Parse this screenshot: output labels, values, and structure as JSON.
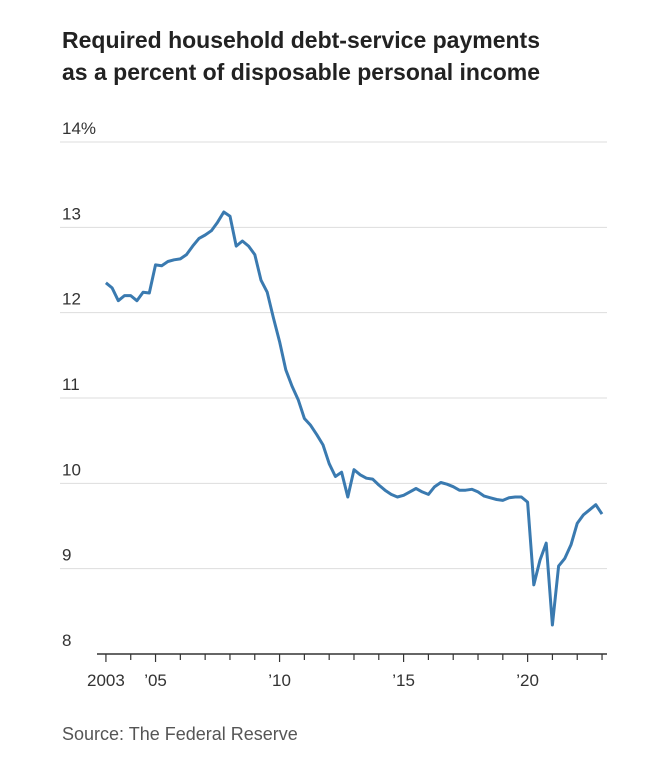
{
  "chart_data": {
    "type": "line",
    "title": [
      "Required household debt-service payments",
      "as a percent of disposable personal income"
    ],
    "source": "Source: The Federal Reserve",
    "x": [
      2003,
      2003.25,
      2003.5,
      2003.75,
      2004,
      2004.25,
      2004.5,
      2004.75,
      2005,
      2005.25,
      2005.5,
      2005.75,
      2006,
      2006.25,
      2006.5,
      2006.75,
      2007,
      2007.25,
      2007.5,
      2007.75,
      2008,
      2008.25,
      2008.5,
      2008.75,
      2009,
      2009.25,
      2009.5,
      2009.75,
      2010,
      2010.25,
      2010.5,
      2010.75,
      2011,
      2011.25,
      2011.5,
      2011.75,
      2012,
      2012.25,
      2012.5,
      2012.75,
      2013,
      2013.25,
      2013.5,
      2013.75,
      2014,
      2014.25,
      2014.5,
      2014.75,
      2015,
      2015.25,
      2015.5,
      2015.75,
      2016,
      2016.25,
      2016.5,
      2016.75,
      2017,
      2017.25,
      2017.5,
      2017.75,
      2018,
      2018.25,
      2018.5,
      2018.75,
      2019,
      2019.25,
      2019.5,
      2019.75,
      2020,
      2020.25,
      2020.5,
      2020.75,
      2021,
      2021.25,
      2021.5,
      2021.75,
      2022,
      2022.25,
      2022.5,
      2022.75,
      2023
    ],
    "series": [
      {
        "color": "#3a7ab0",
        "values": [
          12.35,
          12.29,
          12.14,
          12.2,
          12.2,
          12.14,
          12.24,
          12.23,
          12.56,
          12.55,
          12.6,
          12.62,
          12.63,
          12.68,
          12.78,
          12.87,
          12.91,
          12.96,
          13.06,
          13.18,
          13.13,
          12.78,
          12.84,
          12.78,
          12.68,
          12.38,
          12.24,
          11.94,
          11.66,
          11.33,
          11.14,
          10.98,
          10.76,
          10.68,
          10.57,
          10.45,
          10.23,
          10.08,
          10.13,
          9.84,
          10.16,
          10.1,
          10.06,
          10.05,
          9.98,
          9.92,
          9.87,
          9.84,
          9.86,
          9.9,
          9.94,
          9.9,
          9.87,
          9.96,
          10.01,
          9.99,
          9.96,
          9.92,
          9.92,
          9.93,
          9.9,
          9.85,
          9.83,
          9.81,
          9.8,
          9.83,
          9.84,
          9.84,
          9.78,
          8.81,
          9.1,
          9.3,
          8.34,
          9.03,
          9.12,
          9.28,
          9.53,
          9.63,
          9.69,
          9.75,
          9.64
        ]
      }
    ],
    "xlim": [
      2002.64,
      2023.2
    ],
    "xticks": [
      {
        "value": 2003,
        "label": "2003"
      },
      {
        "value": 2005,
        "label": "’05"
      },
      {
        "value": 2010,
        "label": "’10"
      },
      {
        "value": 2015,
        "label": "’15"
      },
      {
        "value": 2020,
        "label": "’20"
      }
    ],
    "x_minor_ticks": [
      2004,
      2006,
      2007,
      2008,
      2009,
      2011,
      2012,
      2013,
      2014,
      2016,
      2017,
      2018,
      2019,
      2021,
      2022,
      2023
    ],
    "ylim": [
      8,
      14
    ],
    "yticks": [
      8,
      9,
      10,
      11,
      12,
      13,
      {
        "value": 14,
        "label": "14%"
      }
    ],
    "grid": true
  }
}
